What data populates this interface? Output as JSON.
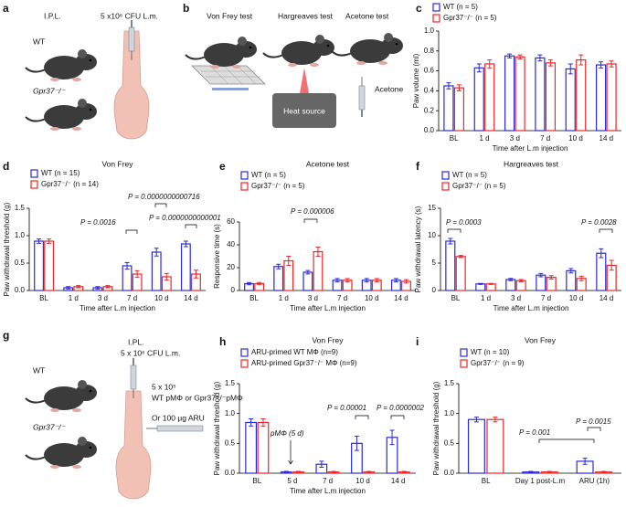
{
  "panel_labels": [
    "a",
    "b",
    "c",
    "d",
    "e",
    "f",
    "g",
    "h",
    "i"
  ],
  "illustration_a": {
    "route": "I.P.L.",
    "dose": "5 x10⁶ CFU L.m.",
    "wt": "WT",
    "ko": "Gpr37⁻/⁻"
  },
  "illustration_b": {
    "tests": [
      "Von Frey test",
      "Hargreaves test",
      "Acetone test"
    ],
    "heat": "Heat source",
    "acetone": "Acetone"
  },
  "illustration_g": {
    "route": "I.PL.",
    "dose": "5 x 10⁶ CFU L.m.",
    "wt": "WT",
    "ko": "Gpr37⁻/⁻",
    "cells": "5 x 10⁵",
    "cell_types": "WT pMΦ  or Gpr37⁻/⁻pMΦ",
    "aru": "Or 100 µg ARU"
  },
  "chart_data": [
    {
      "type": "bar",
      "ylabel": "Paw volume (ml)",
      "xlabel": "Time after L.m injection",
      "categories": [
        "BL",
        "1 d",
        "3 d",
        "7 d",
        "10 d",
        "14 d"
      ],
      "series": [
        {
          "name": "WT (n = 5)",
          "color": "#2b2bd6",
          "values": [
            0.45,
            0.63,
            0.75,
            0.73,
            0.62,
            0.66
          ],
          "errors": [
            0.03,
            0.04,
            0.02,
            0.03,
            0.05,
            0.03
          ]
        },
        {
          "name": "Gpr37⁻/⁻ (n = 5)",
          "color": "#e8282a",
          "values": [
            0.43,
            0.67,
            0.74,
            0.68,
            0.71,
            0.67
          ],
          "errors": [
            0.03,
            0.04,
            0.02,
            0.03,
            0.05,
            0.03
          ]
        }
      ],
      "ylim": [
        0,
        1.0
      ],
      "yticks": [
        {
          "value": 0,
          "label": "0.0"
        },
        0.2,
        0.4,
        0.6,
        0.8,
        {
          "value": 1,
          "label": "1.0"
        }
      ],
      "annotations": []
    },
    {
      "type": "bar",
      "title": "Von Frey",
      "ylabel": "Paw withdrawal threshold (g)",
      "xlabel": "Time after L.m injection",
      "categories": [
        "BL",
        "1 d",
        "3 d",
        "7 d",
        "10 d",
        "14 d"
      ],
      "series": [
        {
          "name": "WT (n = 15)",
          "color": "#2b2bd6",
          "values": [
            0.9,
            0.05,
            0.05,
            0.45,
            0.7,
            0.85
          ],
          "errors": [
            0.04,
            0.02,
            0.02,
            0.06,
            0.07,
            0.05
          ]
        },
        {
          "name": "Gpr37⁻/⁻ (n = 14)",
          "color": "#e8282a",
          "values": [
            0.9,
            0.07,
            0.07,
            0.3,
            0.25,
            0.3
          ],
          "errors": [
            0.04,
            0.02,
            0.02,
            0.06,
            0.06,
            0.07
          ]
        }
      ],
      "ylim": [
        0,
        1.5
      ],
      "yticks": [
        {
          "value": 0,
          "label": "0.0"
        },
        0.5,
        {
          "value": 1,
          "label": "1.0"
        },
        1.5
      ],
      "annotations": [
        "P = 0.0016",
        "P = 0.0000000000716",
        "P = 0.0000000000001"
      ]
    },
    {
      "type": "bar",
      "title": "Acetone test",
      "ylabel": "Responsive time (s)",
      "xlabel": "Time after L.m injection",
      "categories": [
        "BL",
        "1 d",
        "3 d",
        "7 d",
        "10 d",
        "14 d"
      ],
      "series": [
        {
          "name": "WT (n = 5)",
          "color": "#2b2bd6",
          "values": [
            6,
            21,
            16,
            9,
            9,
            9
          ],
          "errors": [
            1,
            2,
            1.5,
            1.5,
            1.5,
            1.5
          ]
        },
        {
          "name": "Gpr37⁻/⁻ (n = 5)",
          "color": "#e8282a",
          "values": [
            6,
            26,
            34,
            9,
            9,
            8
          ],
          "errors": [
            1,
            4,
            4,
            1.5,
            1.5,
            1.5
          ]
        }
      ],
      "ylim": [
        0,
        60
      ],
      "yticks": [
        0,
        20,
        40,
        60
      ],
      "annotations": [
        "P = 0.000006"
      ]
    },
    {
      "type": "bar",
      "title": "Hargreaves test",
      "ylabel": "Paw withdrawal latency (s)",
      "xlabel": "Time after L.m injection",
      "categories": [
        "BL",
        "1 d",
        "3 d",
        "7 d",
        "10 d",
        "14 d"
      ],
      "series": [
        {
          "name": "WT (n = 5)",
          "color": "#2b2bd6",
          "values": [
            9,
            1.2,
            2,
            2.8,
            3.6,
            6.8
          ],
          "errors": [
            0.5,
            0.1,
            0.2,
            0.3,
            0.4,
            0.8
          ]
        },
        {
          "name": "Gpr37⁻/⁻ (n = 5)",
          "color": "#e8282a",
          "values": [
            6.2,
            1.2,
            1.8,
            2.4,
            2.2,
            4.6
          ],
          "errors": [
            0.2,
            0.1,
            0.2,
            0.3,
            0.4,
            0.9
          ]
        }
      ],
      "ylim": [
        0,
        15
      ],
      "yticks": [
        0,
        5,
        10,
        15
      ],
      "annotations": [
        "P = 0.0003",
        "P = 0.0028"
      ]
    },
    {
      "type": "bar",
      "title": "Von Frey",
      "ylabel": "Paw withdrawal threshold (g)",
      "xlabel": "Time after L.m injection",
      "categories": [
        "BL",
        "5 d",
        "7 d",
        "10 d",
        "14 d"
      ],
      "series": [
        {
          "name": "ARU-primed WT MΦ (n=9)",
          "color": "#2b2bd6",
          "values": [
            0.85,
            0.02,
            0.15,
            0.5,
            0.6
          ],
          "errors": [
            0.06,
            0.01,
            0.05,
            0.12,
            0.12
          ]
        },
        {
          "name": "ARU-primed Gpr37⁻/⁻ MΦ (n=9)",
          "color": "#e8282a",
          "values": [
            0.85,
            0.02,
            0.02,
            0.02,
            0.02
          ],
          "errors": [
            0.06,
            0.01,
            0.01,
            0.01,
            0.01
          ]
        }
      ],
      "ylim": [
        0,
        1.5
      ],
      "yticks": [
        {
          "value": 0,
          "label": "0.0"
        },
        0.5,
        {
          "value": 1,
          "label": "1.0"
        },
        1.5
      ],
      "annotations": [
        "pMΦ (5 d)",
        "P = 0.00001",
        "P = 0.0000002"
      ]
    },
    {
      "type": "bar",
      "title": "Von Frey",
      "ylabel": "Paw withdrawal threshold (g)",
      "categories": [
        "BL",
        "Day 1 post-L.m",
        "ARU (1h)"
      ],
      "series": [
        {
          "name": "WT (n = 10)",
          "color": "#2b2bd6",
          "values": [
            0.9,
            0.02,
            0.2
          ],
          "errors": [
            0.04,
            0.01,
            0.05
          ]
        },
        {
          "name": "Gpr37⁻/⁻ (n = 9)",
          "color": "#e8282a",
          "values": [
            0.9,
            0.02,
            0.02
          ],
          "errors": [
            0.04,
            0.01,
            0.01
          ]
        }
      ],
      "ylim": [
        0,
        1.5
      ],
      "yticks": [
        {
          "value": 0,
          "label": "0.0"
        },
        0.5,
        {
          "value": 1,
          "label": "1.0"
        },
        1.5
      ],
      "annotations": [
        "P = 0.001",
        "P = 0.0015"
      ]
    }
  ]
}
